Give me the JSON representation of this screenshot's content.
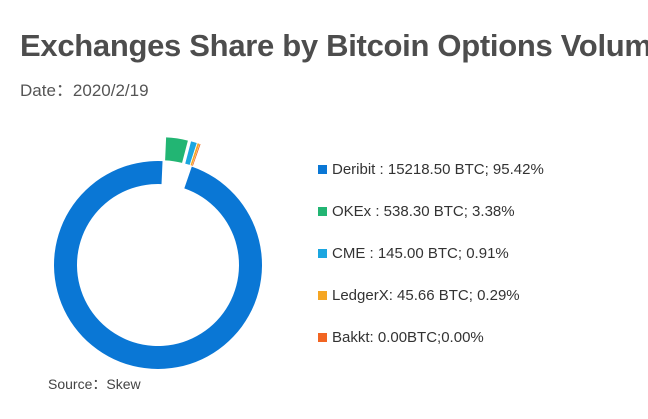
{
  "title": "Exchanges Share by Bitcoin Options Volume",
  "subtitle": "Date：2020/2/19",
  "source": "Source：Skew",
  "chart_data": {
    "type": "pie",
    "variant": "donut",
    "title": "Exchanges Share by Bitcoin Options Volume",
    "unit": "BTC",
    "legend_position": "right",
    "series": [
      {
        "name": "Deribit",
        "value": 15218.5,
        "percent": 95.42,
        "color": "#0a77d5",
        "label": "Deribit : 15218.50 BTC; 95.42%"
      },
      {
        "name": "OKEx",
        "value": 538.3,
        "percent": 3.38,
        "color": "#22b573",
        "label": "OKEx : 538.30 BTC; 3.38%"
      },
      {
        "name": "CME",
        "value": 145.0,
        "percent": 0.91,
        "color": "#1ba6e0",
        "label": "CME : 145.00 BTC; 0.91%"
      },
      {
        "name": "LedgerX",
        "value": 45.66,
        "percent": 0.29,
        "color": "#f5a623",
        "label": "LedgerX: 45.66 BTC; 0.29%"
      },
      {
        "name": "Bakkt",
        "value": 0.0,
        "percent": 0.0,
        "color": "#f26522",
        "label": "Bakkt: 0.00BTC;0.00%"
      }
    ]
  }
}
